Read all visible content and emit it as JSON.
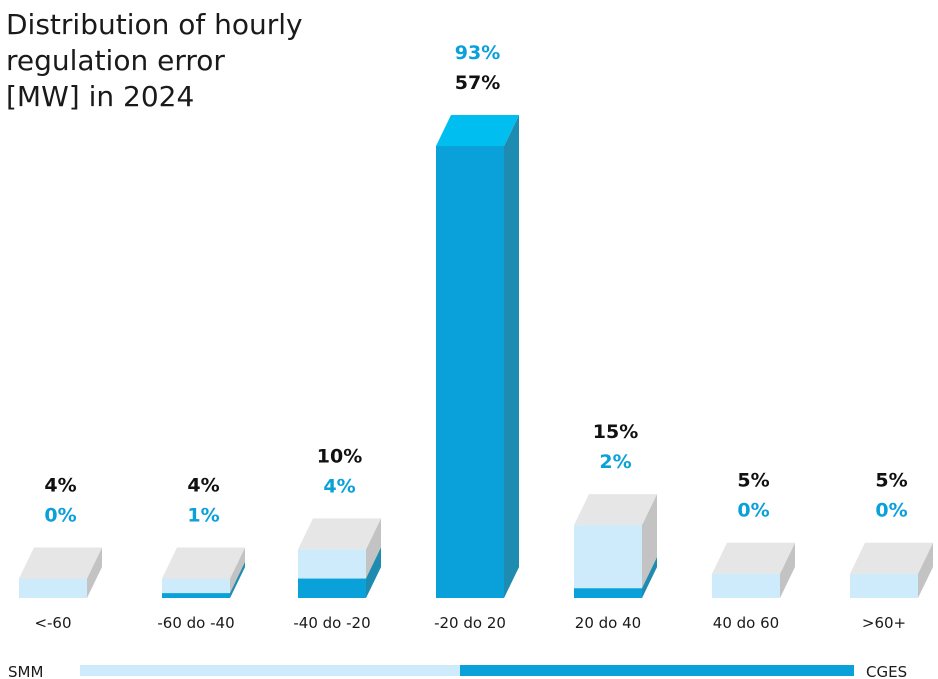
{
  "colors": {
    "smm_front": "#CDEBFA",
    "smm_side": "#C3C3C3",
    "top_face": "#E6E6E6",
    "cges_front": "#0AA0DA",
    "cges_side": "#1E8CB0",
    "cges_top": "#00BFF0",
    "smm_text": "#111111",
    "cges_text": "#0AA0DA"
  },
  "chart_data": {
    "type": "bar",
    "title": "Distribution of hourly regulation error [MW] in 2024",
    "title_lines": [
      "Distribution of hourly",
      "regulation error",
      "[MW] in 2024"
    ],
    "categories": [
      "<-60",
      "-60 do -40",
      "-40 do -20",
      "-20 do 20",
      "20 do 40",
      "40 do 60",
      ">60+"
    ],
    "series": [
      {
        "name": "SMM",
        "values": [
          4,
          4,
          10,
          57,
          15,
          5,
          5
        ],
        "labels": [
          "4%",
          "4%",
          "10%",
          "57%",
          "15%",
          "5%",
          "5%"
        ]
      },
      {
        "name": "CGES",
        "values": [
          0,
          1,
          4,
          93,
          2,
          0,
          0
        ],
        "labels": [
          "0%",
          "1%",
          "4%",
          "93%",
          "2%",
          "0%",
          "0%"
        ]
      }
    ],
    "legend": {
      "left": "SMM",
      "right": "CGES",
      "placement": "bottom"
    },
    "grid": false
  }
}
